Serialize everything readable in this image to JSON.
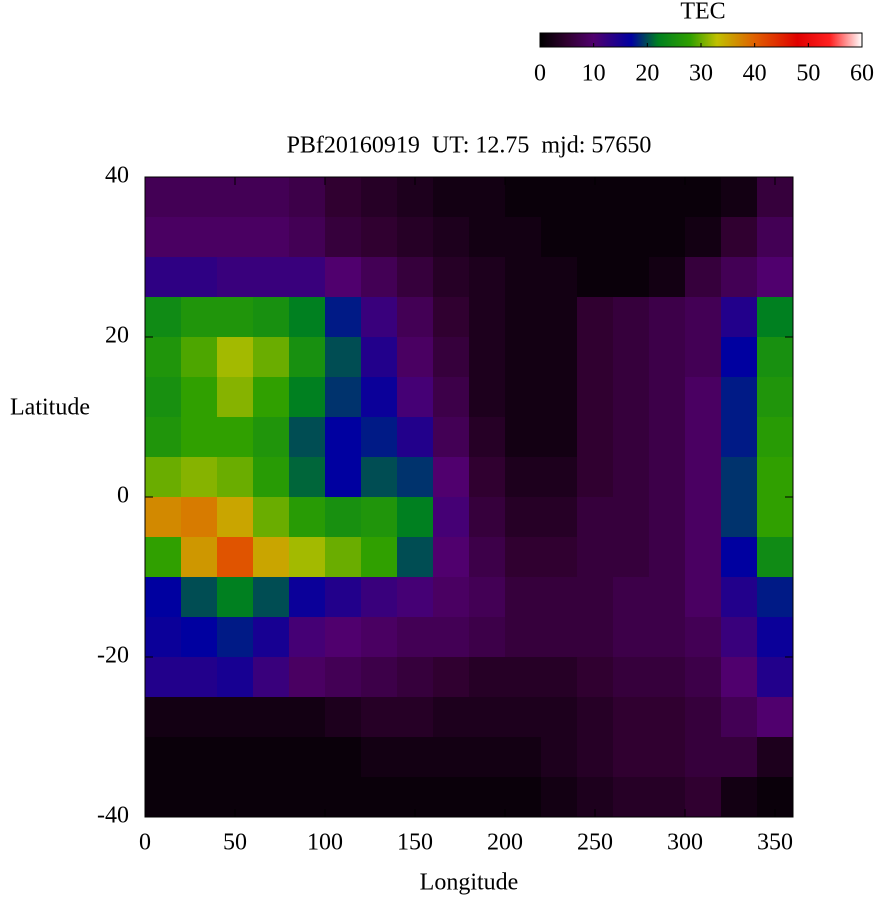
{
  "chart_data": {
    "type": "heatmap",
    "title": "PBf20160919  UT: 12.75  mjd: 57650",
    "x_label": "Longitude",
    "y_label": "Latitude",
    "colorbar_label": "TEC",
    "x": [
      10,
      30,
      50,
      70,
      90,
      110,
      130,
      150,
      170,
      190,
      210,
      230,
      250,
      270,
      290,
      310,
      330,
      350
    ],
    "y": [
      37.5,
      32.5,
      27.5,
      22.5,
      17.5,
      12.5,
      7.5,
      2.5,
      -2.5,
      -7.5,
      -12.5,
      -17.5,
      -22.5,
      -27.5,
      -32.5,
      -37.5
    ],
    "z": [
      [
        8,
        8,
        8,
        8,
        7,
        5,
        4,
        3,
        2,
        2,
        1,
        1,
        1,
        1,
        1,
        1,
        2,
        6
      ],
      [
        9,
        9,
        9,
        9,
        8,
        6,
        5,
        4,
        3,
        2,
        2,
        1,
        1,
        1,
        1,
        2,
        5,
        8
      ],
      [
        13,
        13,
        12,
        12,
        12,
        10,
        8,
        6,
        4,
        3,
        2,
        2,
        1,
        1,
        2,
        6,
        8,
        10
      ],
      [
        24,
        26,
        26,
        25,
        22,
        18,
        12,
        8,
        5,
        3,
        2,
        2,
        5,
        6,
        7,
        8,
        14,
        22
      ],
      [
        26,
        29,
        32,
        30,
        25,
        20,
        14,
        9,
        6,
        3,
        2,
        2,
        5,
        6,
        7,
        8,
        17,
        25
      ],
      [
        25,
        28,
        31,
        28,
        22,
        19,
        16,
        11,
        7,
        3,
        2,
        2,
        5,
        6,
        7,
        9,
        18,
        26
      ],
      [
        26,
        28,
        28,
        26,
        20,
        17,
        18,
        14,
        8,
        4,
        2,
        2,
        5,
        6,
        7,
        9,
        18,
        27
      ],
      [
        30,
        31,
        30,
        27,
        21,
        17,
        20,
        19,
        10,
        5,
        3,
        3,
        5,
        6,
        7,
        9,
        19,
        28
      ],
      [
        37,
        38,
        35,
        30,
        27,
        25,
        26,
        22,
        11,
        6,
        4,
        4,
        6,
        6,
        7,
        9,
        19,
        28
      ],
      [
        28,
        36,
        41,
        35,
        32,
        30,
        28,
        20,
        10,
        7,
        5,
        5,
        6,
        6,
        7,
        9,
        17,
        24
      ],
      [
        17,
        20,
        22,
        20,
        16,
        14,
        12,
        11,
        9,
        8,
        6,
        6,
        6,
        7,
        7,
        9,
        14,
        18
      ],
      [
        16,
        17,
        18,
        15,
        11,
        10,
        9,
        8,
        8,
        7,
        6,
        6,
        6,
        7,
        7,
        8,
        12,
        16
      ],
      [
        14,
        14,
        15,
        12,
        9,
        8,
        7,
        6,
        5,
        4,
        4,
        4,
        5,
        6,
        6,
        7,
        10,
        14
      ],
      [
        2,
        2,
        2,
        2,
        2,
        3,
        4,
        4,
        3,
        3,
        3,
        3,
        4,
        5,
        5,
        6,
        8,
        10
      ],
      [
        1,
        1,
        1,
        1,
        1,
        1,
        2,
        2,
        2,
        2,
        2,
        3,
        4,
        5,
        5,
        6,
        6,
        3
      ],
      [
        1,
        1,
        1,
        1,
        1,
        1,
        1,
        1,
        1,
        1,
        1,
        2,
        3,
        4,
        4,
        5,
        2,
        1
      ]
    ],
    "xlim": [
      0,
      360
    ],
    "xticks": [
      0,
      50,
      100,
      150,
      200,
      250,
      300,
      350
    ],
    "ylim": [
      -40,
      40
    ],
    "yticks": [
      -40,
      -20,
      0,
      20,
      40
    ],
    "clim": [
      0,
      60
    ],
    "cticks": [
      0,
      10,
      20,
      30,
      40,
      50,
      60
    ],
    "colorscale": [
      [
        0,
        "#000000"
      ],
      [
        5,
        "#300030"
      ],
      [
        10,
        "#50006e"
      ],
      [
        17,
        "#0000a0"
      ],
      [
        22,
        "#008020"
      ],
      [
        28,
        "#30a000"
      ],
      [
        33,
        "#c0c000"
      ],
      [
        40,
        "#e06000"
      ],
      [
        48,
        "#e00000"
      ],
      [
        54,
        "#ff2020"
      ],
      [
        60,
        "#ffffff"
      ]
    ]
  }
}
